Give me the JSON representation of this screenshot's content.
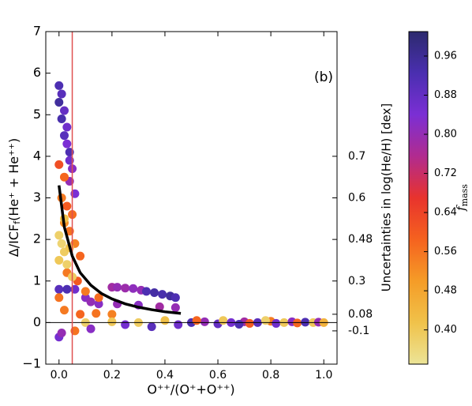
{
  "chart_data": {
    "type": "scatter",
    "annotation": "(b)",
    "xlabel": "O⁺⁺/(O⁺+O⁺⁺)",
    "ylabel": {
      "main": "Δ/ICF",
      "sub": "f",
      "rest": "(He⁺ + He⁺⁺)"
    },
    "y2label": "Uncertainties in log(He/H) [dex]",
    "colorbar_label": {
      "main": "f",
      "sub": "mass"
    },
    "xlim": [
      -0.05,
      1.05
    ],
    "ylim": [
      -1,
      7
    ],
    "xticks": [
      {
        "value": 0,
        "label": "0.0"
      },
      {
        "value": 0.2,
        "label": "0.2"
      },
      {
        "value": 0.4,
        "label": "0.4"
      },
      {
        "value": 0.6,
        "label": "0.6"
      },
      {
        "value": 0.8,
        "label": "0.8"
      },
      {
        "value": 1,
        "label": "1.0"
      }
    ],
    "yticks": [
      {
        "value": -1,
        "label": "−1"
      },
      0,
      1,
      2,
      3,
      4,
      5,
      6,
      7
    ],
    "y2ticks": [
      0.7,
      0.6,
      0.48,
      0.3,
      0.08,
      -0.1
    ],
    "y2tick_positions": [
      4,
      3,
      2,
      1,
      0.2,
      -0.2
    ],
    "clim": [
      0.33,
      1.01
    ],
    "cticks": [
      {
        "value": 0.4,
        "label": "0.40"
      },
      0.48,
      0.56,
      0.64,
      0.72,
      {
        "value": 0.8,
        "label": "0.80"
      },
      0.88,
      0.96
    ],
    "colormap": [
      "#ece497",
      "#f0c24a",
      "#f59c27",
      "#f5621f",
      "#e8332d",
      "#b12b8f",
      "#7b2fd4",
      "#4a2fb0",
      "#2c2a6e"
    ],
    "reference_lines": {
      "vertical_x": 0.05,
      "vertical_color": "#e05050",
      "horizontal_y": 0,
      "horizontal_color": "#000000"
    },
    "x": [
      0.0,
      0.01,
      0.0,
      0.02,
      0.01,
      0.03,
      0.02,
      0.03,
      0.04,
      0.04,
      0.05,
      0.04,
      0.06,
      0.0,
      0.02,
      0.01,
      0.03,
      0.05,
      0.02,
      0.04,
      0.06,
      0.08,
      0.03,
      0.07,
      0.0,
      0.01,
      0.02,
      0.0,
      0.03,
      0.04,
      0.02,
      0.05,
      0.0,
      0.03,
      0.06,
      0.1,
      0.12,
      0.2,
      0.22,
      0.25,
      0.28,
      0.31,
      0.33,
      0.36,
      0.39,
      0.42,
      0.44,
      0.15,
      0.22,
      0.3,
      0.38,
      0.44,
      0.1,
      0.15,
      0.0,
      0.02,
      0.08,
      0.14,
      0.2,
      0.1,
      0.2,
      0.3,
      0.4,
      0.25,
      0.35,
      0.45,
      0.5,
      0.55,
      0.6,
      0.62,
      0.65,
      0.7,
      0.72,
      0.75,
      0.8,
      0.82,
      0.85,
      0.88,
      0.9,
      0.93,
      0.96,
      0.98,
      1.0,
      0.0,
      0.01,
      0.06,
      0.12,
      0.52,
      0.68,
      0.78
    ],
    "y": [
      5.7,
      5.5,
      5.3,
      5.1,
      4.9,
      4.7,
      4.5,
      4.3,
      4.1,
      3.9,
      3.7,
      3.4,
      3.1,
      3.8,
      3.5,
      3.0,
      2.8,
      2.6,
      2.4,
      2.2,
      1.9,
      1.6,
      1.2,
      1.0,
      2.1,
      1.9,
      1.7,
      1.5,
      1.4,
      1.8,
      2.5,
      1.1,
      0.8,
      0.8,
      0.8,
      0.6,
      0.5,
      0.85,
      0.85,
      0.83,
      0.82,
      0.78,
      0.75,
      0.72,
      0.68,
      0.64,
      0.6,
      0.45,
      0.45,
      0.42,
      0.38,
      0.36,
      0.75,
      0.6,
      0.6,
      0.3,
      0.2,
      0.22,
      0.2,
      0.0,
      0.02,
      0.0,
      0.05,
      -0.05,
      -0.1,
      -0.05,
      0.0,
      0.02,
      -0.03,
      0.05,
      0.0,
      0.02,
      -0.02,
      0.0,
      0.03,
      -0.02,
      0.0,
      0.02,
      -0.01,
      0.01,
      0.0,
      0.01,
      0.0,
      -0.35,
      -0.25,
      -0.2,
      -0.15,
      0.05,
      -0.04,
      0.05
    ],
    "c": [
      0.92,
      0.9,
      0.95,
      0.88,
      0.93,
      0.86,
      0.9,
      0.84,
      0.92,
      0.86,
      0.82,
      0.8,
      0.84,
      0.62,
      0.58,
      0.55,
      0.6,
      0.57,
      0.52,
      0.56,
      0.54,
      0.58,
      0.55,
      0.6,
      0.38,
      0.37,
      0.39,
      0.4,
      0.38,
      0.41,
      0.42,
      0.39,
      0.9,
      0.92,
      0.86,
      0.82,
      0.8,
      0.78,
      0.8,
      0.79,
      0.81,
      0.8,
      0.92,
      0.94,
      0.93,
      0.95,
      0.92,
      0.82,
      0.8,
      0.82,
      0.78,
      0.8,
      0.55,
      0.57,
      0.56,
      0.55,
      0.58,
      0.56,
      0.54,
      0.38,
      0.4,
      0.39,
      0.42,
      0.85,
      0.9,
      0.86,
      0.92,
      0.8,
      0.88,
      0.4,
      0.85,
      0.78,
      0.6,
      0.9,
      0.55,
      0.86,
      0.4,
      0.82,
      0.58,
      0.92,
      0.4,
      0.8,
      0.45,
      0.85,
      0.8,
      0.56,
      0.82,
      0.58,
      0.92,
      0.38
    ],
    "fit": {
      "color": "#000000",
      "x": [
        0,
        0.02,
        0.05,
        0.08,
        0.12,
        0.16,
        0.2,
        0.25,
        0.3,
        0.35,
        0.4,
        0.46
      ],
      "y": [
        3.3,
        2.3,
        1.6,
        1.2,
        0.9,
        0.7,
        0.57,
        0.45,
        0.37,
        0.31,
        0.26,
        0.22
      ]
    }
  }
}
